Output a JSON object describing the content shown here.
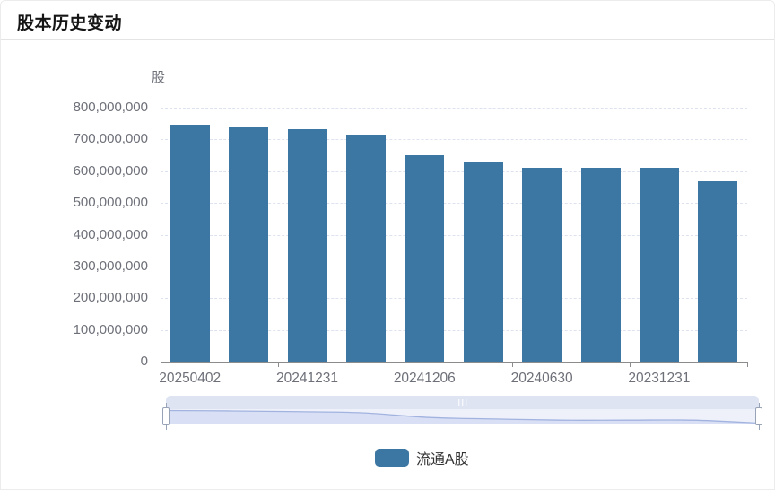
{
  "header": {
    "title": "股本历史变动"
  },
  "chart_data": {
    "type": "bar",
    "title": "股本历史变动",
    "unit_label": "股",
    "series": [
      {
        "name": "流通A股",
        "values": [
          747000000,
          741000000,
          731000000,
          714000000,
          649000000,
          628000000,
          611000000,
          611000000,
          611000000,
          569000000
        ]
      }
    ],
    "x_tick_labels": [
      "20250402",
      "20241231",
      "20241206",
      "20240630",
      "20231231"
    ],
    "x_label_bar_indices": [
      0,
      2,
      4,
      6,
      8
    ],
    "y_ticks": [
      "800,000,000",
      "700,000,000",
      "600,000,000",
      "500,000,000",
      "400,000,000",
      "300,000,000",
      "200,000,000",
      "100,000,000",
      "0"
    ],
    "ylim": [
      0,
      800000000
    ],
    "grid": "horizontal-dashed",
    "legend": [
      {
        "label": "流通A股",
        "color": "#3C76A2"
      }
    ],
    "legend_position": "bottom",
    "has_datazoom_slider": true,
    "colors": {
      "bar": "#3C76A2",
      "axis_line": "#8C8C8C",
      "axis_label": "#6E7079",
      "grid_line": "#DDE2EF",
      "dz_strip": "#DFE4F3",
      "dz_track": "#EEF1FA",
      "dz_area_fill": "#D9E0F5",
      "dz_line": "#A2B3E0",
      "dz_handle_border": "#99A3B8"
    }
  }
}
